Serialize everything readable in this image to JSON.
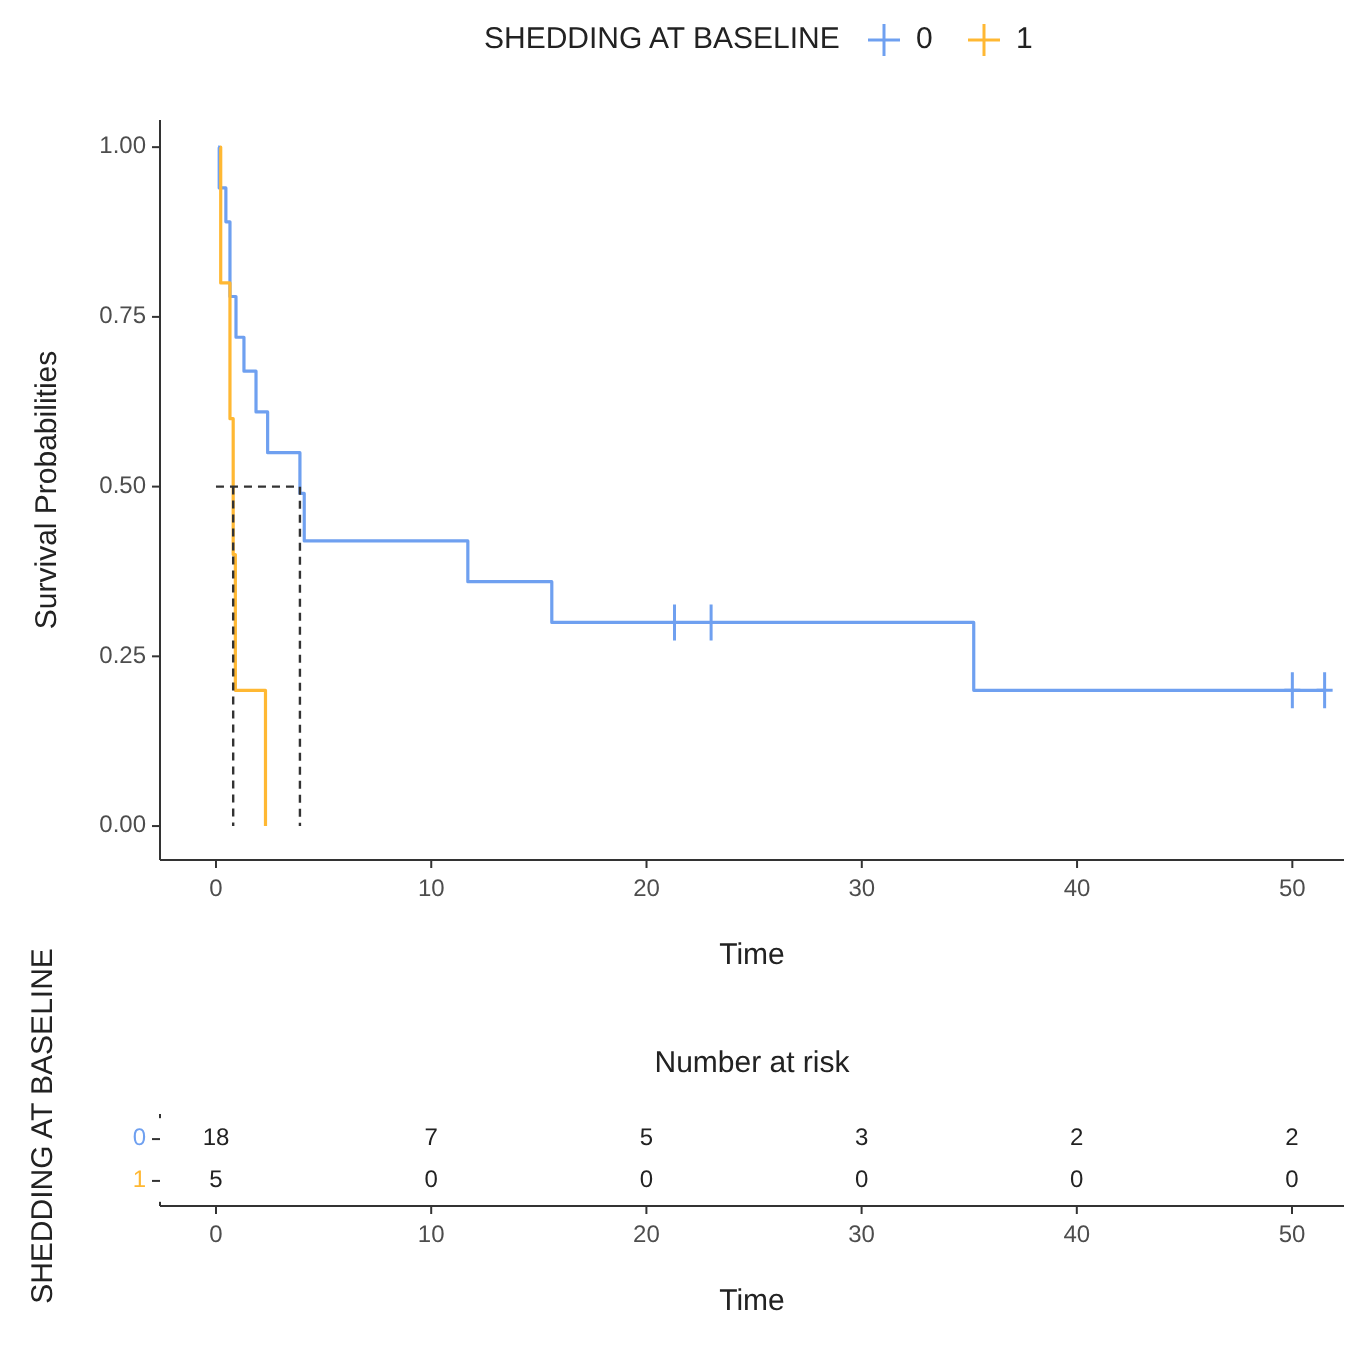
{
  "chart_data": [
    {
      "type": "step",
      "xlabel": "Time",
      "ylabel": "Survival Probabilities",
      "legend_title": "SHEDDING AT BASELINE",
      "legend": "top",
      "grid": false,
      "xlim": [
        -2.6,
        52.4
      ],
      "xticks": [
        0,
        10,
        20,
        30,
        40,
        50
      ],
      "ylim": [
        -0.05,
        1.04
      ],
      "yticks": [
        {
          "value": 0,
          "label": "0.00"
        },
        {
          "value": 0.25,
          "label": "0.25"
        },
        {
          "value": 0.5,
          "label": "0.50"
        },
        {
          "value": 0.75,
          "label": "0.75"
        },
        {
          "value": 1,
          "label": "1.00"
        }
      ],
      "series": [
        {
          "name": "0",
          "color": "#6fa0f0",
          "x": [
            0.1,
            0.15,
            0.46,
            0.65,
            0.93,
            1.3,
            1.86,
            2.4,
            3.9,
            4.1,
            11.7,
            15.6,
            35.2,
            51.5
          ],
          "values": [
            1,
            0.94,
            0.89,
            0.78,
            0.72,
            0.67,
            0.61,
            0.55,
            0.49,
            0.42,
            0.36,
            0.3,
            0.2,
            0.2
          ]
        },
        {
          "name": "1",
          "color": "#ffb833",
          "x": [
            0.19,
            0.22,
            0.65,
            0.8,
            0.9,
            2.3
          ],
          "values": [
            1,
            0.8,
            0.6,
            0.4,
            0.2,
            0
          ]
        },
        {
          "type": "scatter",
          "marker": "cross",
          "color": "#6fa0f0",
          "x": [
            21.3,
            23,
            50,
            51.5
          ],
          "values": [
            0.3,
            0.3,
            0.2,
            0.2
          ]
        },
        {
          "type": "line",
          "line_style": "dashed",
          "color": "#333333",
          "x": [
            0,
            3.9,
            3.9
          ],
          "values": [
            0.5,
            0.5,
            0
          ]
        },
        {
          "type": "line",
          "line_style": "dashed",
          "color": "#333333",
          "x": [
            0.8,
            0.8
          ],
          "values": [
            0.5,
            0
          ]
        }
      ]
    },
    {
      "type": "heatmap",
      "title": "Number at risk",
      "xlabel": "Time",
      "ylabel": "SHEDDING AT BASELINE",
      "data_labels": true,
      "categories": [
        "0",
        "10",
        "20",
        "30",
        "40",
        "50"
      ],
      "y_categories": [
        "0",
        "1"
      ],
      "colors": [
        "#6fa0f0",
        "#ffb833"
      ],
      "cells": [
        [
          18,
          7,
          5,
          3,
          2,
          2
        ],
        [
          5,
          0,
          0,
          0,
          0,
          0
        ]
      ]
    }
  ]
}
